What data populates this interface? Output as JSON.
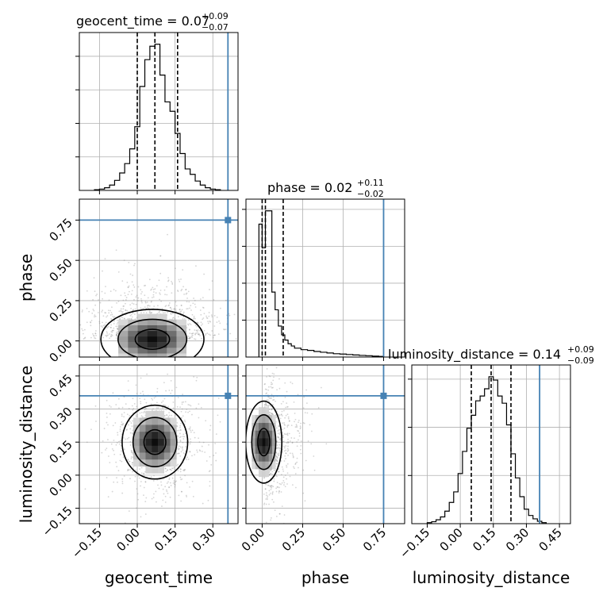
{
  "chart_data": {
    "type": "corner",
    "parameters": [
      "geocent_time",
      "phase",
      "luminosity_distance"
    ],
    "truths": {
      "geocent_time": 0.36,
      "phase": 0.75,
      "luminosity_distance": 0.36
    },
    "truth_color": "#4682b4",
    "titles": [
      {
        "param": "geocent_time",
        "text": "geocent_time = 0.07",
        "plus": "+0.09",
        "minus": "−0.07"
      },
      {
        "param": "phase",
        "text": "phase = 0.02",
        "plus": "+0.11",
        "minus": "−0.02"
      },
      {
        "param": "luminosity_distance",
        "text": "luminosity_distance = 0.14",
        "plus": "+0.09",
        "minus": "−0.09"
      }
    ],
    "ranges": {
      "geocent_time": [
        -0.23,
        0.4
      ],
      "phase": [
        -0.1,
        0.88
      ],
      "luminosity_distance": [
        -0.22,
        0.5
      ]
    },
    "ticks": {
      "geocent_time": {
        "values": [
          -0.15,
          0.0,
          0.15,
          0.3
        ],
        "labels": [
          "−0.15",
          "0.00",
          "0.15",
          "0.30"
        ]
      },
      "phase": {
        "values": [
          0.0,
          0.25,
          0.5,
          0.75
        ],
        "labels": [
          "0.00",
          "0.25",
          "0.50",
          "0.75"
        ]
      },
      "luminosity_distance": {
        "values": [
          -0.15,
          0.0,
          0.15,
          0.3,
          0.45
        ],
        "labels": [
          "−0.15",
          "0.00",
          "0.15",
          "0.30",
          "0.45"
        ]
      }
    },
    "quantiles": {
      "geocent_time": [
        0.0,
        0.07,
        0.16
      ],
      "phase": [
        0.0,
        0.02,
        0.13
      ],
      "luminosity_distance": [
        0.05,
        0.14,
        0.23
      ]
    },
    "histograms": {
      "geocent_time": {
        "edges": [
          -0.17,
          -0.15,
          -0.13,
          -0.11,
          -0.09,
          -0.07,
          -0.05,
          -0.03,
          -0.01,
          0.01,
          0.03,
          0.05,
          0.07,
          0.09,
          0.11,
          0.13,
          0.15,
          0.17,
          0.19,
          0.21,
          0.23,
          0.25,
          0.27,
          0.29,
          0.31,
          0.33
        ],
        "counts": [
          1,
          2,
          4,
          8,
          15,
          26,
          40,
          62,
          95,
          155,
          195,
          215,
          218,
          172,
          132,
          118,
          85,
          55,
          32,
          24,
          14,
          8,
          4,
          2,
          1
        ],
        "yticks": [
          50,
          100,
          150,
          200
        ]
      },
      "phase": {
        "edges": [
          -0.02,
          0.0,
          0.02,
          0.04,
          0.06,
          0.08,
          0.1,
          0.12,
          0.14,
          0.16,
          0.18,
          0.2,
          0.24,
          0.28,
          0.32,
          0.36,
          0.4,
          0.44,
          0.48,
          0.52,
          0.56,
          0.6,
          0.64,
          0.68,
          0.72,
          0.75
        ],
        "counts": [
          1800,
          1480,
          1980,
          1980,
          880,
          640,
          420,
          300,
          230,
          180,
          150,
          120,
          100,
          90,
          75,
          65,
          55,
          45,
          40,
          34,
          28,
          22,
          18,
          12,
          8
        ],
        "yticks": [
          500,
          1000,
          1500,
          2000
        ]
      },
      "luminosity_distance": {
        "edges": [
          -0.15,
          -0.13,
          -0.11,
          -0.09,
          -0.07,
          -0.05,
          -0.03,
          -0.01,
          0.01,
          0.03,
          0.05,
          0.07,
          0.09,
          0.11,
          0.13,
          0.15,
          0.17,
          0.19,
          0.21,
          0.23,
          0.25,
          0.27,
          0.29,
          0.31,
          0.33,
          0.35,
          0.37,
          0.39
        ],
        "counts": [
          2,
          4,
          8,
          14,
          26,
          44,
          66,
          104,
          150,
          198,
          225,
          255,
          265,
          280,
          305,
          298,
          265,
          250,
          205,
          145,
          95,
          56,
          30,
          17,
          10,
          5,
          2
        ],
        "yticks": [
          100,
          200,
          300
        ]
      }
    },
    "contours": {
      "phase_vs_geocent_time": {
        "center": [
          0.06,
          0.01
        ],
        "sigma": [
          0.11,
          0.1
        ],
        "levels": [
          1.0,
          2.0,
          3.0
        ],
        "scatter_n": 900
      },
      "luminosity_distance_vs_geocent_time": {
        "center": [
          0.07,
          0.15
        ],
        "sigma": [
          0.07,
          0.09
        ],
        "levels": [
          1.0,
          2.0,
          3.0
        ],
        "scatter_n": 900
      },
      "luminosity_distance_vs_phase": {
        "center": [
          0.01,
          0.15
        ],
        "sigma": [
          0.06,
          0.1
        ],
        "levels": [
          1.0,
          2.0,
          3.0
        ],
        "scatter_n": 700
      }
    }
  }
}
